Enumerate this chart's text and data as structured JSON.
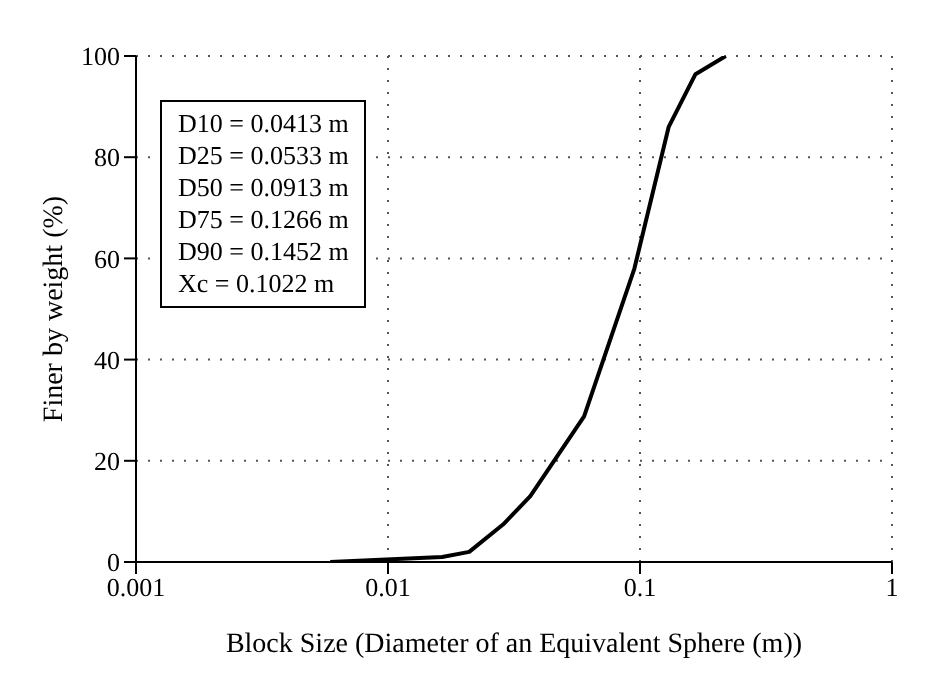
{
  "chart_data": {
    "type": "line",
    "xlabel": "Block Size (Diameter of an Equivalent Sphere (m))",
    "ylabel": "Finer by weight (%)",
    "x": [
      0.0059,
      0.0164,
      0.021,
      0.0286,
      0.0367,
      0.06,
      0.095,
      0.13,
      0.166,
      0.219
    ],
    "series": [
      {
        "color": "#000000",
        "values": [
          0,
          1,
          2,
          7.4,
          13,
          28.8,
          58,
          86,
          96.4,
          100
        ]
      }
    ],
    "log": "x",
    "xlim": [
      0.001,
      1
    ],
    "xticks": [
      0.001,
      0.01,
      0.1,
      1
    ],
    "ylim": [
      0,
      100
    ],
    "yticks": [
      0,
      20,
      40,
      60,
      80,
      100
    ],
    "grid": true,
    "marker": "none",
    "line_style": "solid",
    "annotations": [
      "D10 = 0.0413 m",
      "D25 = 0.0533 m",
      "D50 = 0.0913 m",
      "D75 = 0.1266 m",
      "D90 = 0.1452 m",
      "Xc = 0.1022 m"
    ]
  }
}
